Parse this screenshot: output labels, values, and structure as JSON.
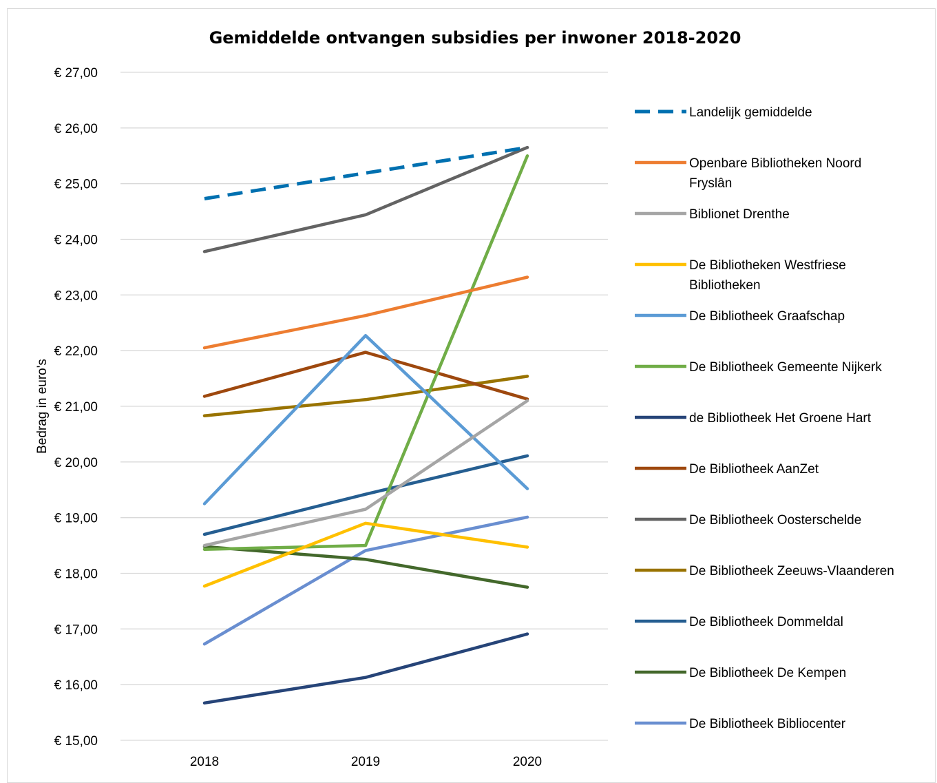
{
  "chart_data": {
    "type": "line",
    "title": "Gemiddelde ontvangen subsidies per inwoner 2018-2020",
    "xlabel": "",
    "ylabel": "Bedrag in euro's",
    "categories": [
      "2018",
      "2019",
      "2020"
    ],
    "ylim": [
      15,
      27
    ],
    "yticks": [
      15,
      16,
      17,
      18,
      19,
      20,
      21,
      22,
      23,
      24,
      25,
      26,
      27
    ],
    "ytick_labels": [
      "€ 15,00",
      "€ 16,00",
      "€ 17,00",
      "€ 18,00",
      "€ 19,00",
      "€ 20,00",
      "€ 21,00",
      "€ 22,00",
      "€ 23,00",
      "€ 24,00",
      "€ 25,00",
      "€ 26,00",
      "€ 27,00"
    ],
    "grid": true,
    "legend_position": "right",
    "series": [
      {
        "name": "Landelijk gemiddelde",
        "values": [
          24.73,
          25.19,
          25.65
        ],
        "color": "#0070b0",
        "dashed": true
      },
      {
        "name": "Openbare Bibliotheken Noord Fryslân",
        "legend_lines": [
          "Openbare Bibliotheken Noord",
          "Fryslân"
        ],
        "values": [
          22.05,
          22.63,
          23.32
        ],
        "color": "#ed7d31",
        "dashed": false
      },
      {
        "name": "Biblionet Drenthe",
        "values": [
          18.5,
          19.15,
          21.1
        ],
        "color": "#a5a5a5",
        "dashed": false
      },
      {
        "name": "De Bibliotheken Westfriese Bibliotheken",
        "legend_lines": [
          "De Bibliotheken Westfriese",
          "Bibliotheken"
        ],
        "values": [
          17.77,
          18.9,
          18.47
        ],
        "color": "#ffc000",
        "dashed": false
      },
      {
        "name": "De Bibliotheek Graafschap",
        "values": [
          19.25,
          22.27,
          19.52
        ],
        "color": "#5b9bd5",
        "dashed": false
      },
      {
        "name": "De Bibliotheek Gemeente Nijkerk",
        "values": [
          18.43,
          18.5,
          25.5
        ],
        "color": "#70ad47",
        "dashed": false
      },
      {
        "name": "de Bibliotheek Het Groene Hart",
        "values": [
          15.67,
          16.13,
          16.91
        ],
        "color": "#264478",
        "dashed": false
      },
      {
        "name": "De Bibliotheek AanZet",
        "values": [
          21.18,
          21.97,
          21.13
        ],
        "color": "#9e480e",
        "dashed": false
      },
      {
        "name": "De Bibliotheek Oosterschelde",
        "values": [
          23.78,
          24.44,
          25.65
        ],
        "color": "#636363",
        "dashed": false
      },
      {
        "name": "De Bibliotheek Zeeuws-Vlaanderen",
        "values": [
          20.83,
          21.12,
          21.54
        ],
        "color": "#997300",
        "dashed": false
      },
      {
        "name": "De Bibliotheek Dommeldal",
        "values": [
          18.7,
          19.42,
          20.11
        ],
        "color": "#255e91",
        "dashed": false
      },
      {
        "name": "De Bibliotheek De Kempen",
        "values": [
          18.48,
          18.25,
          17.75
        ],
        "color": "#43682b",
        "dashed": false
      },
      {
        "name": "De Bibliotheek Bibliocenter",
        "values": [
          16.73,
          18.41,
          19.01
        ],
        "color": "#698ed0",
        "dashed": false
      }
    ]
  }
}
